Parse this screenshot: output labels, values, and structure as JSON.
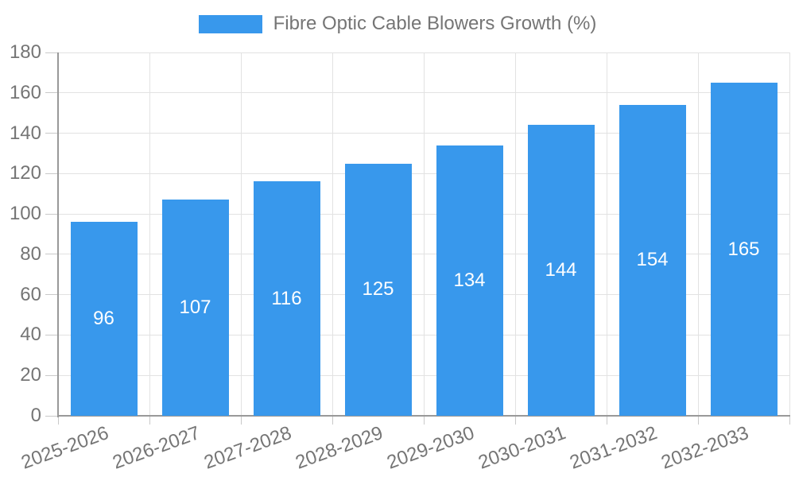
{
  "legend": {
    "label": "Fibre Optic Cable Blowers Growth (%)"
  },
  "chart_data": {
    "type": "bar",
    "title": "Fibre Optic Cable Blowers Growth (%)",
    "series_name": "Fibre Optic Cable Blowers Growth (%)",
    "categories": [
      "2025-2026",
      "2026-2027",
      "2027-2028",
      "2028-2029",
      "2029-2030",
      "2030-2031",
      "2031-2032",
      "2032-2033"
    ],
    "values": [
      96,
      107,
      116,
      125,
      134,
      144,
      154,
      165
    ],
    "xlabel": "",
    "ylabel": "",
    "ylim": [
      0,
      180
    ],
    "ytick_step": 20,
    "yticks": [
      0,
      20,
      40,
      60,
      80,
      100,
      120,
      140,
      160,
      180
    ],
    "grid": true,
    "legend_position": "top",
    "value_labels": "inside-center",
    "colors": {
      "bar": "#3898EC",
      "value_label": "#FFFFFF",
      "axis_text": "#757575",
      "gridline": "#E2E2E2",
      "tick": "#C9C9C9",
      "axis_line": "#999999",
      "background": "#FFFFFF"
    }
  }
}
